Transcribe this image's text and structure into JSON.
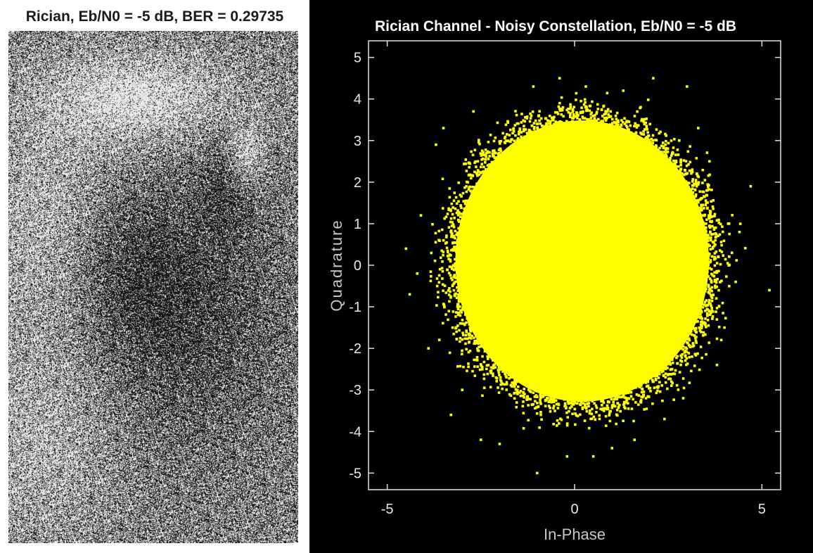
{
  "left_panel": {
    "title": "Rician, Eb/N0 = -5 dB, BER = 0.29735"
  },
  "chart_data": {
    "type": "scatter",
    "title": "Rician Channel - Noisy Constellation, Eb/N0 = -5 dB",
    "xlabel": "In-Phase",
    "ylabel": "Quadrature",
    "xlim": [
      -5.5,
      5.5
    ],
    "ylim": [
      -5.4,
      5.4
    ],
    "xticks": [
      -5,
      0,
      5
    ],
    "yticks": [
      5,
      4,
      3,
      2,
      1,
      0,
      -1,
      -2,
      -3,
      -4,
      -5
    ],
    "grid": false,
    "marker_color": "#ffff00",
    "background_color": "#000000",
    "axis_color": "#e0e0e0",
    "cloud": {
      "center": [
        0.2,
        0.1
      ],
      "radius": 3.6
    },
    "outliers": [
      [
        -4.5,
        0.4
      ],
      [
        -4.4,
        -0.7
      ],
      [
        -4.1,
        1.2
      ],
      [
        -3.7,
        2.9
      ],
      [
        4.7,
        1.9
      ],
      [
        5.2,
        -0.6
      ],
      [
        4.2,
        0.3
      ],
      [
        4.1,
        1.0
      ],
      [
        2.1,
        4.5
      ],
      [
        3.0,
        4.3
      ],
      [
        -0.4,
        4.5
      ],
      [
        0.3,
        4.3
      ],
      [
        -1.0,
        -5.0
      ],
      [
        0.5,
        -4.6
      ],
      [
        -2.5,
        -4.2
      ],
      [
        2.4,
        -3.7
      ],
      [
        -3.0,
        -3.0
      ],
      [
        3.6,
        2.5
      ],
      [
        -3.9,
        -2.0
      ],
      [
        4.0,
        -1.5
      ],
      [
        3.3,
        3.3
      ],
      [
        -3.5,
        3.3
      ],
      [
        -1.1,
        4.3
      ],
      [
        1.3,
        4.2
      ],
      [
        -2.0,
        -4.3
      ],
      [
        1.6,
        -4.2
      ],
      [
        4.3,
        -0.4
      ],
      [
        -4.2,
        -0.2
      ],
      [
        3.8,
        -2.4
      ],
      [
        -3.3,
        -3.6
      ],
      [
        2.9,
        -3.2
      ],
      [
        -2.7,
        3.7
      ],
      [
        1.0,
        -4.4
      ],
      [
        -0.2,
        -4.6
      ],
      [
        4.4,
        0.8
      ]
    ]
  }
}
